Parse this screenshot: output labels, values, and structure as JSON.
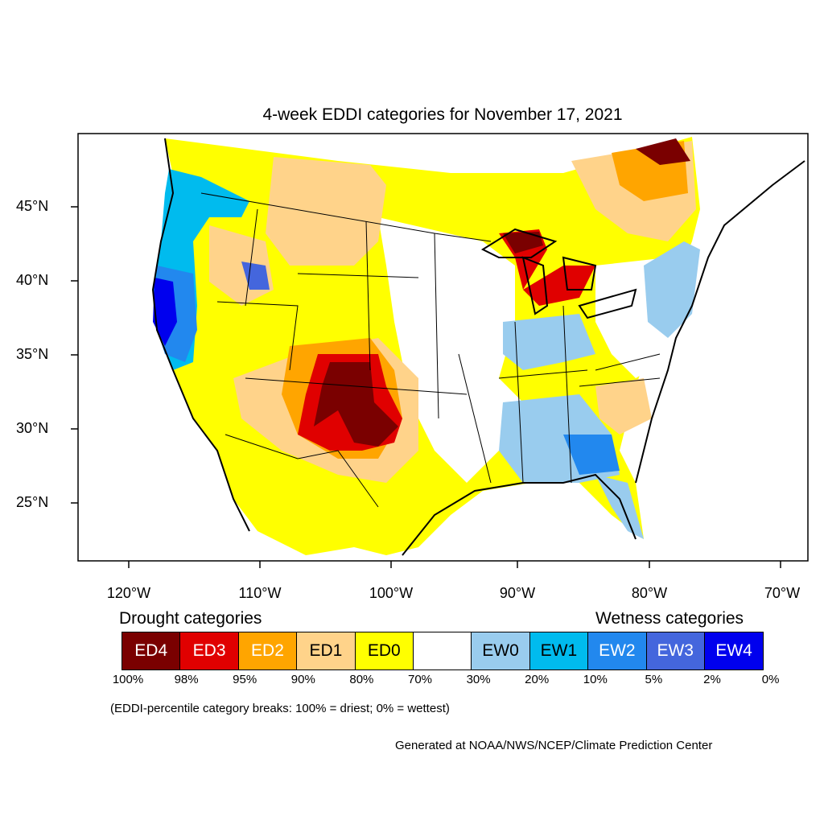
{
  "title": "4-week EDDI categories for November 17, 2021",
  "lat_labels": [
    "45°N",
    "40°N",
    "35°N",
    "30°N",
    "25°N"
  ],
  "lon_labels": [
    "120°W",
    "110°W",
    "100°W",
    "90°W",
    "80°W",
    "70°W"
  ],
  "legend": {
    "drought_heading": "Drought categories",
    "wetness_heading": "Wetness categories",
    "categories": [
      {
        "label": "ED4",
        "color": "#7a0000",
        "text_color": "#ffffff"
      },
      {
        "label": "ED3",
        "color": "#e00000",
        "text_color": "#ffffff"
      },
      {
        "label": "ED2",
        "color": "#ffa500",
        "text_color": "#ffffff"
      },
      {
        "label": "ED1",
        "color": "#ffd38a",
        "text_color": "#000000"
      },
      {
        "label": "ED0",
        "color": "#ffff00",
        "text_color": "#000000"
      },
      {
        "label": "",
        "color": "#ffffff",
        "text_color": "#000000"
      },
      {
        "label": "EW0",
        "color": "#99ccee",
        "text_color": "#000000"
      },
      {
        "label": "EW1",
        "color": "#00bbee",
        "text_color": "#000000"
      },
      {
        "label": "EW2",
        "color": "#2288ee",
        "text_color": "#ffffff"
      },
      {
        "label": "EW3",
        "color": "#4466dd",
        "text_color": "#ffffff"
      },
      {
        "label": "EW4",
        "color": "#0000ee",
        "text_color": "#ffffff"
      }
    ],
    "breaks": [
      "100%",
      "98%",
      "95%",
      "90%",
      "80%",
      "70%",
      "30%",
      "20%",
      "10%",
      "5%",
      "2%",
      "0%"
    ]
  },
  "note": "(EDDI-percentile category breaks: 100% = driest; 0% = wettest)",
  "credit": "Generated at NOAA/NWS/NCEP/Climate Prediction Center"
}
